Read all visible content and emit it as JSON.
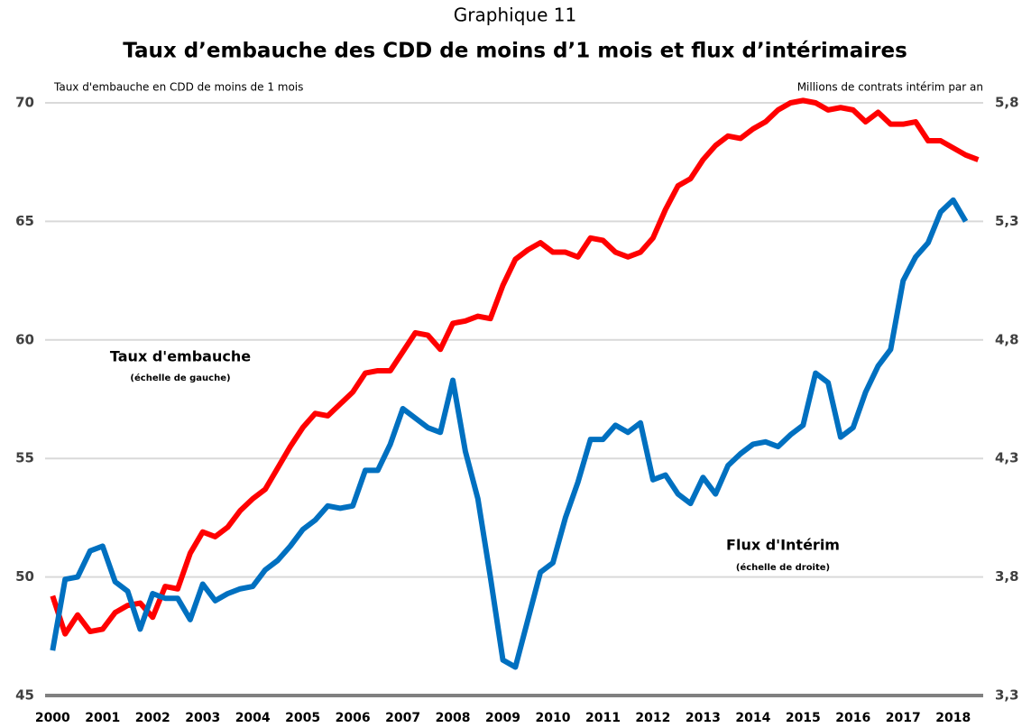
{
  "chart_data": {
    "type": "line",
    "subtitle": "Graphique 11",
    "title": "Taux d’embauche des CDD de moins d’1 mois et flux d’intérimaires",
    "y_label": "Taux d'embauche en CDD de moins de 1 mois",
    "y2_label": "Millions de contrats intérim par an",
    "annotations": [
      "Taux d'embauche",
      "(échelle de gauche)",
      "Flux d'Intérim",
      "(échelle de droite)"
    ],
    "x": [
      2000,
      2000.25,
      2000.5,
      2000.75,
      2001,
      2001.25,
      2001.5,
      2001.75,
      2002,
      2002.25,
      2002.5,
      2002.75,
      2003,
      2003.25,
      2003.5,
      2003.75,
      2004,
      2004.25,
      2004.5,
      2004.75,
      2005,
      2005.25,
      2005.5,
      2005.75,
      2006,
      2006.25,
      2006.5,
      2006.75,
      2007,
      2007.25,
      2007.5,
      2007.75,
      2008,
      2008.25,
      2008.5,
      2008.75,
      2009,
      2009.25,
      2009.5,
      2009.75,
      2010,
      2010.25,
      2010.5,
      2010.75,
      2011,
      2011.25,
      2011.5,
      2011.75,
      2012,
      2012.25,
      2012.5,
      2012.75,
      2013,
      2013.25,
      2013.5,
      2013.75,
      2014,
      2014.25,
      2014.5,
      2014.75,
      2015,
      2015.25,
      2015.5,
      2015.75,
      2016,
      2016.25,
      2016.5,
      2016.75,
      2017,
      2017.25,
      2017.5,
      2017.75,
      2018,
      2018.25,
      2018.5
    ],
    "xlim": [
      1999.85,
      2018.6
    ],
    "xticks": [
      2000,
      2001,
      2002,
      2003,
      2004,
      2005,
      2006,
      2007,
      2008,
      2009,
      2010,
      2011,
      2012,
      2013,
      2014,
      2015,
      2016,
      2017,
      2018
    ],
    "ylim": [
      45,
      70
    ],
    "yticks": [
      45,
      50,
      55,
      60,
      65,
      70
    ],
    "y2lim": [
      3.3,
      5.8
    ],
    "y2ticks": [
      {
        "value": 3.3,
        "label": "3,3"
      },
      {
        "value": 3.8,
        "label": "3,8"
      },
      {
        "value": 4.3,
        "label": "4,3"
      },
      {
        "value": 4.8,
        "label": "4,8"
      },
      {
        "value": 5.3,
        "label": "5,3"
      },
      {
        "value": 5.8,
        "label": "5,8"
      }
    ],
    "grid": true,
    "series": [
      {
        "name": "Taux d'embauche",
        "color": "#ff0000",
        "axis": "y",
        "values": [
          49.2,
          47.6,
          48.4,
          47.7,
          47.8,
          48.5,
          48.8,
          48.9,
          48.3,
          49.6,
          49.5,
          51.0,
          51.9,
          51.7,
          52.1,
          52.8,
          53.3,
          53.7,
          54.6,
          55.5,
          56.3,
          56.9,
          56.8,
          57.3,
          57.8,
          58.6,
          58.7,
          58.7,
          59.5,
          60.3,
          60.2,
          59.6,
          60.7,
          60.8,
          61.0,
          60.9,
          62.3,
          63.4,
          63.8,
          64.1,
          63.7,
          63.7,
          63.5,
          64.3,
          64.2,
          63.7,
          63.5,
          63.7,
          64.3,
          65.5,
          66.5,
          66.8,
          67.6,
          68.2,
          68.6,
          68.5,
          68.9,
          69.2,
          69.7,
          70.0,
          70.1,
          70.0,
          69.7,
          69.8,
          69.7,
          69.2,
          69.6,
          69.1,
          69.1,
          69.2,
          68.4,
          68.4,
          68.1,
          67.8,
          67.6
        ]
      },
      {
        "name": "Flux d'Intérim",
        "color": "#0070c0",
        "axis": "y2",
        "values": [
          3.49,
          3.79,
          3.8,
          3.91,
          3.93,
          3.78,
          3.74,
          3.58,
          3.73,
          3.71,
          3.71,
          3.62,
          3.77,
          3.7,
          3.73,
          3.75,
          3.76,
          3.83,
          3.87,
          3.93,
          4.0,
          4.04,
          4.1,
          4.09,
          4.1,
          4.25,
          4.25,
          4.36,
          4.51,
          4.47,
          4.43,
          4.41,
          4.63,
          4.33,
          4.13,
          3.8,
          3.45,
          3.42,
          3.62,
          3.82,
          3.86,
          4.05,
          4.2,
          4.38,
          4.38,
          4.44,
          4.41,
          4.45,
          4.21,
          4.23,
          4.15,
          4.11,
          4.22,
          4.15,
          4.27,
          4.32,
          4.36,
          4.37,
          4.35,
          4.4,
          4.44,
          4.66,
          4.62,
          4.39,
          4.43,
          4.58,
          4.69,
          4.76,
          5.05,
          5.15,
          5.21,
          5.34,
          5.39,
          5.3,
          null
        ]
      }
    ]
  }
}
